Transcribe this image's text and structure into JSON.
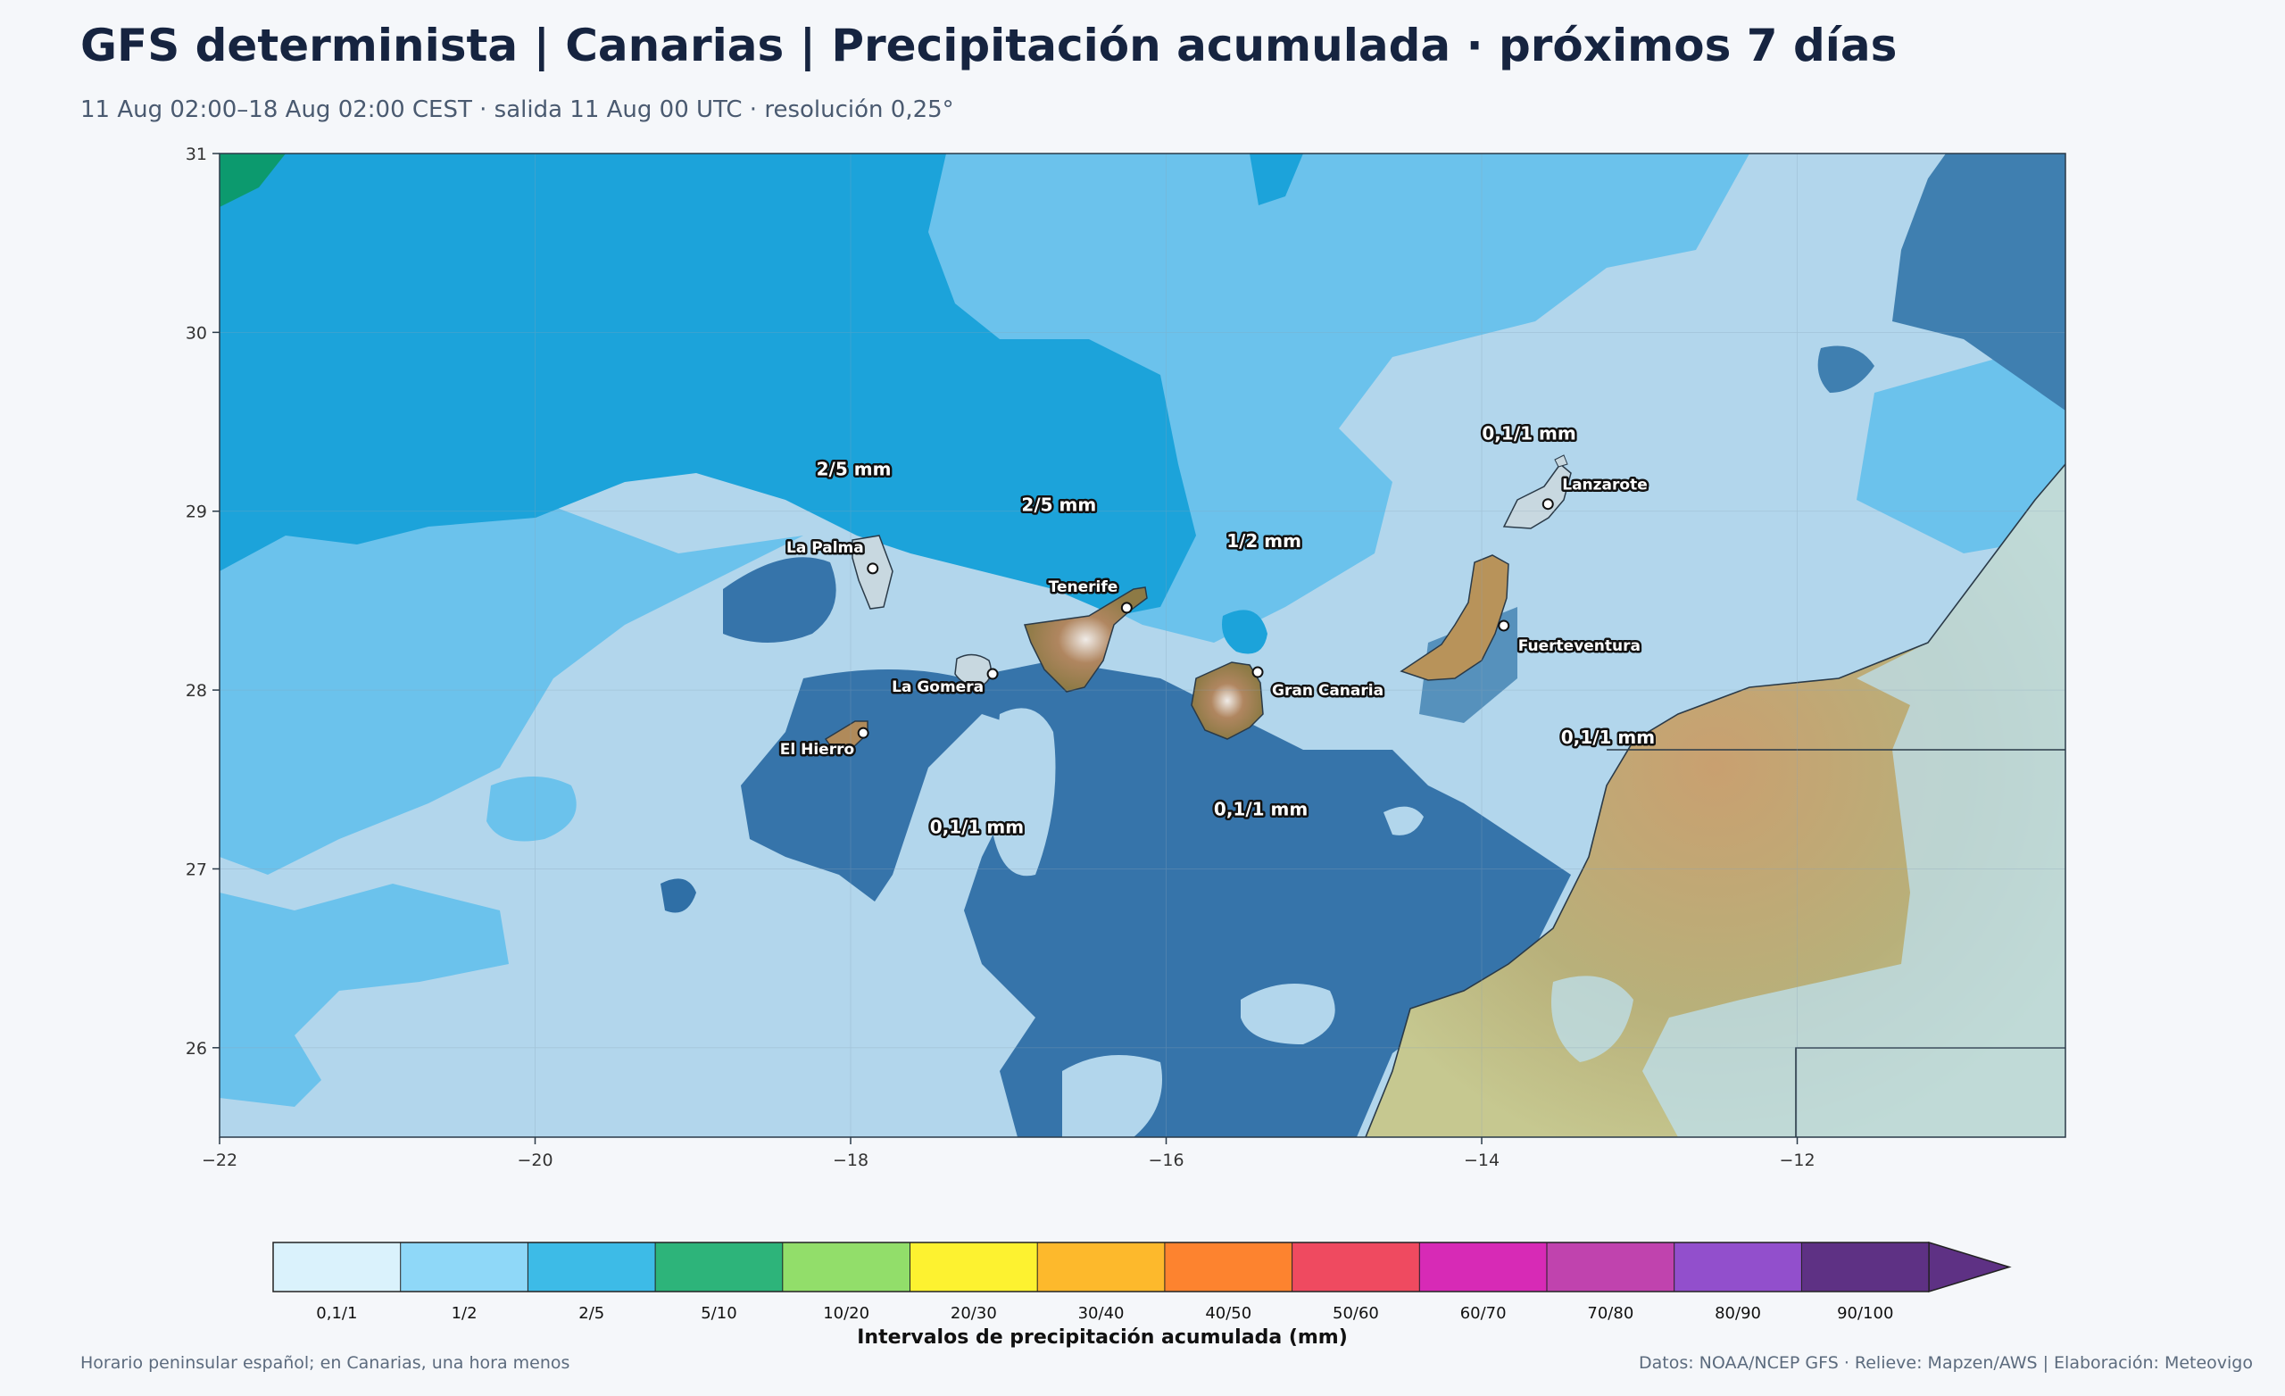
{
  "header": {
    "title": "GFS determinista | Canarias | Precipitación acumulada · próximos 7 días",
    "subtitle": "11 Aug 02:00–18 Aug 02:00 CEST · salida 11 Aug 00 UTC · resolución 0,25°"
  },
  "map": {
    "lon_range": [
      -22,
      -10.3
    ],
    "lat_range": [
      25.5,
      31
    ],
    "lon_ticks": [
      "−22",
      "−20",
      "−18",
      "−16",
      "−14",
      "−12"
    ],
    "lon_tick_values": [
      -22,
      -20,
      -18,
      -16,
      -14,
      -12
    ],
    "lat_ticks": [
      "26",
      "27",
      "28",
      "29",
      "30",
      "31"
    ],
    "lat_tick_values": [
      26,
      27,
      28,
      29,
      30,
      31
    ],
    "islands": [
      {
        "name": "La Palma",
        "lon": -17.86,
        "lat": 28.68
      },
      {
        "name": "Tenerife",
        "lon": -16.25,
        "lat": 28.46
      },
      {
        "name": "La Gomera",
        "lon": -17.1,
        "lat": 28.09
      },
      {
        "name": "El Hierro",
        "lon": -17.92,
        "lat": 27.76
      },
      {
        "name": "Gran Canaria",
        "lon": -15.42,
        "lat": 28.1
      },
      {
        "name": "Fuerteventura",
        "lon": -13.86,
        "lat": 28.36
      },
      {
        "name": "Lanzarote",
        "lon": -13.58,
        "lat": 29.04
      }
    ],
    "zone_labels": [
      {
        "text": "2/5 mm",
        "lon": -17.98,
        "lat": 29.2
      },
      {
        "text": "2/5 mm",
        "lon": -16.68,
        "lat": 29.0
      },
      {
        "text": "1/2 mm",
        "lon": -15.38,
        "lat": 28.8
      },
      {
        "text": "0,1/1 mm",
        "lon": -13.7,
        "lat": 29.4
      },
      {
        "text": "0,1/1 mm",
        "lon": -13.2,
        "lat": 27.7
      },
      {
        "text": "0,1/1 mm",
        "lon": -15.4,
        "lat": 27.3
      },
      {
        "text": "0,1/1 mm",
        "lon": -17.2,
        "lat": 27.2
      }
    ]
  },
  "colorbar": {
    "title": "Intervalos de precipitación acumulada (mm)",
    "bins": [
      {
        "label": "0,1/1",
        "color": "#daf2fc"
      },
      {
        "label": "1/2",
        "color": "#8fd8f8"
      },
      {
        "label": "2/5",
        "color": "#3dbbe7"
      },
      {
        "label": "5/10",
        "color": "#2db47a"
      },
      {
        "label": "10/20",
        "color": "#92de6a"
      },
      {
        "label": "20/30",
        "color": "#fdf230"
      },
      {
        "label": "30/40",
        "color": "#fdb92c"
      },
      {
        "label": "40/50",
        "color": "#fd832f"
      },
      {
        "label": "50/60",
        "color": "#ef4a60"
      },
      {
        "label": "60/70",
        "color": "#d72ab6"
      },
      {
        "label": "70/80",
        "color": "#c043ae"
      },
      {
        "label": "80/90",
        "color": "#924fcc"
      },
      {
        "label": "90/100",
        "color": "#5e3184"
      }
    ]
  },
  "footer": {
    "left": "Horario peninsular español; en Canarias, una hora menos",
    "right": "Datos: NOAA/NCEP GFS · Relieve: Mapzen/AWS | Elaboración: Meteovigo"
  }
}
